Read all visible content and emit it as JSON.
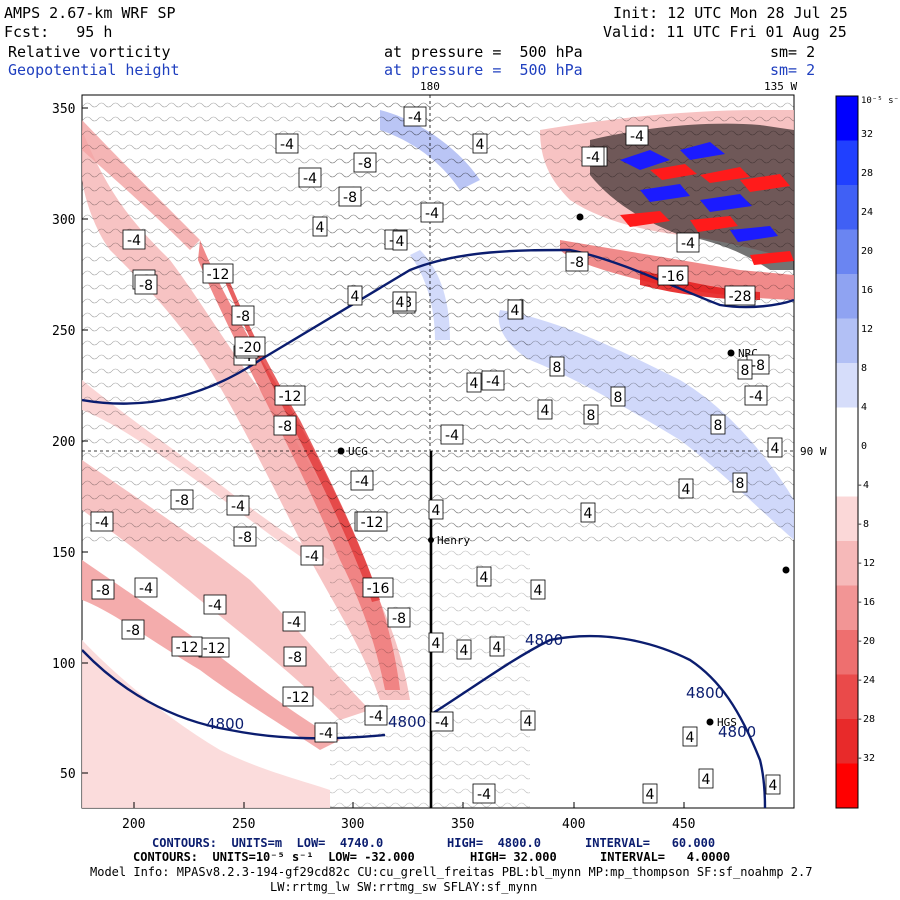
{
  "header": {
    "title": "AMPS 2.67-km WRF SP",
    "init": "Init: 12 UTC Mon 28 Jul 25",
    "forecast": "Fcst:   95 h",
    "valid": "Valid: 11 UTC Fri 01 Aug 25",
    "field1_name": "Relative vorticity",
    "field1_level": "at pressure =  500 hPa",
    "field1_sm": "sm= 2",
    "field2_name": "Geopotential height",
    "field2_level": "at pressure =  500 hPa",
    "field2_sm": "sm= 2"
  },
  "map": {
    "x_ticks": [
      "200",
      "250",
      "300",
      "350",
      "400",
      "450"
    ],
    "y_ticks": [
      "350",
      "300",
      "250",
      "200",
      "150",
      "100",
      "50"
    ],
    "meridian_top_label": "180",
    "meridian_top_right_label": "135 W",
    "parallel_right_label": "90 W",
    "stations": [
      "Henry",
      "UCG",
      "NRC",
      "HGS"
    ],
    "height_contour_labels": [
      "4800",
      "4800",
      "4800",
      "4800",
      "4800"
    ],
    "vort_labels": [
      "-4",
      "-4",
      "-8",
      "-4",
      "-8",
      "-4",
      "4",
      "-4",
      "-8",
      "4",
      "-4",
      "-4",
      "-12",
      "-4",
      "-8",
      "4",
      "-4",
      "4",
      "-8",
      "-16",
      "-8",
      "-8",
      "-4",
      "-4",
      "-4",
      "-12",
      "-20",
      "-8",
      "-12",
      "4",
      "-8",
      "-12",
      "-4",
      "8",
      "4",
      "8",
      "8",
      "4",
      "8",
      "-4",
      "-4",
      "-8",
      "-8",
      "-4",
      "-4",
      "-12",
      "-16",
      "-8",
      "-4",
      "-4",
      "-4",
      "-8",
      "-12",
      "-8",
      "-12",
      "-8",
      "-4",
      "-4",
      "4",
      "4",
      "4",
      "4",
      "4",
      "4",
      "4",
      "4",
      "4",
      "4",
      "4",
      "4",
      "4",
      "4",
      "8",
      "8",
      "8",
      "-4",
      "-8",
      "-28",
      "-4",
      "-4",
      "4",
      "4"
    ]
  },
  "colorbar": {
    "unit": "10⁻⁵ s⁻¹",
    "labels": [
      "32",
      "28",
      "24",
      "20",
      "16",
      "12",
      "8",
      "4",
      "0",
      "-4",
      "-8",
      "-12",
      "-16",
      "-20",
      "-24",
      "-28",
      "-32"
    ]
  },
  "footer": {
    "line1_contours": "CONTOURS:  UNITS=m  LOW=  4740.0",
    "line1_high": "HIGH=  4800.0",
    "line1_interval": "INTERVAL=   60.000",
    "line2_contours": "CONTOURS:  UNITS=10⁻⁵ s⁻¹  LOW= -32.000",
    "line2_high": "HIGH= 32.000",
    "line2_interval": "INTERVAL=   4.0000",
    "model_info": "Model Info: MPASv8.2.3-194-gf29cd82c CU:cu_grell_freitas PBL:bl_mynn MP:mp_thompson SF:sf_noahmp 2.7",
    "model_info2": "LW:rrtmg_lw SW:rrtmg_sw SFLAY:sf_mynn"
  },
  "colors": {
    "positive_max": "#0000ff",
    "negative_max": "#ff0000",
    "height_contour": "#0b1d6f",
    "header_blue": "#1f3fbf"
  }
}
